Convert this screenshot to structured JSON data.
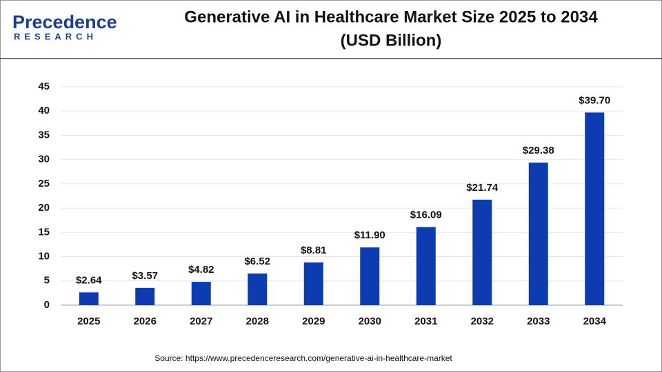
{
  "logo": {
    "name": "Precedence",
    "tagline": "RESEARCH"
  },
  "chart_data": {
    "type": "bar",
    "title": "Generative AI in Healthcare Market Size 2025 to 2034",
    "subtitle": "(USD Billion)",
    "categories": [
      "2025",
      "2026",
      "2027",
      "2028",
      "2029",
      "2030",
      "2031",
      "2032",
      "2033",
      "2034"
    ],
    "values": [
      2.64,
      3.57,
      4.82,
      6.52,
      8.81,
      11.9,
      16.09,
      21.74,
      29.38,
      39.7
    ],
    "value_labels": [
      "$2.64",
      "$3.57",
      "$4.82",
      "$6.52",
      "$8.81",
      "$11.90",
      "$16.09",
      "$21.74",
      "$29.38",
      "$39.70"
    ],
    "color": "#0d3bb0",
    "ylim": [
      0,
      45
    ],
    "yticks": [
      0,
      5,
      10,
      15,
      20,
      25,
      30,
      35,
      40,
      45
    ],
    "grid": true,
    "source": "Source: https://www.precedenceresearch.com/generative-ai-in-healthcare-market"
  }
}
